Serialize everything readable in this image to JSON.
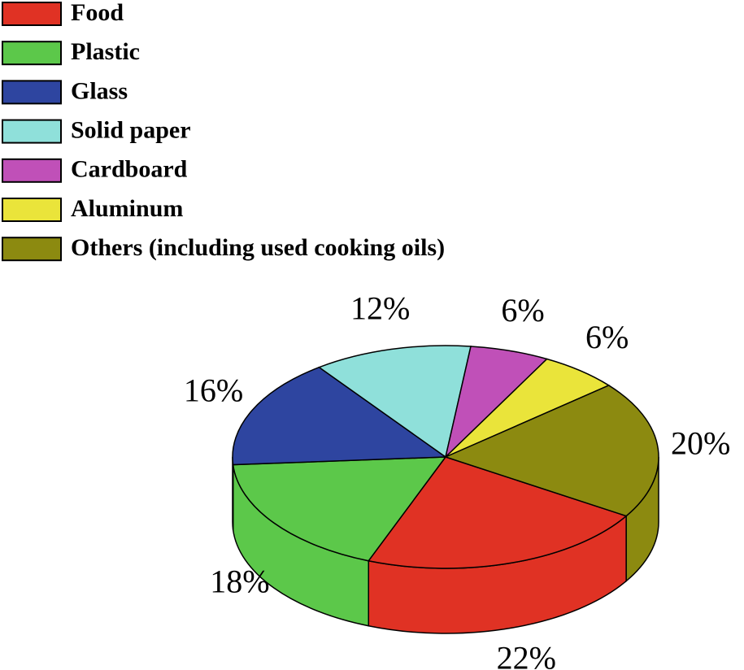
{
  "chart_data": {
    "type": "pie",
    "categories": [
      "Food",
      "Plastic",
      "Glass",
      "Solid paper",
      "Cardboard",
      "Aluminum",
      "Others (including used cooking oils)"
    ],
    "values": [
      22,
      18,
      16,
      12,
      6,
      6,
      20
    ],
    "value_labels": [
      "22%",
      "18%",
      "16%",
      "12%",
      "6%",
      "6%",
      "20%"
    ],
    "colors": [
      "#e03224",
      "#5cc84a",
      "#2e45a0",
      "#8fe0da",
      "#c050b8",
      "#eae43a",
      "#8c8a10"
    ]
  }
}
